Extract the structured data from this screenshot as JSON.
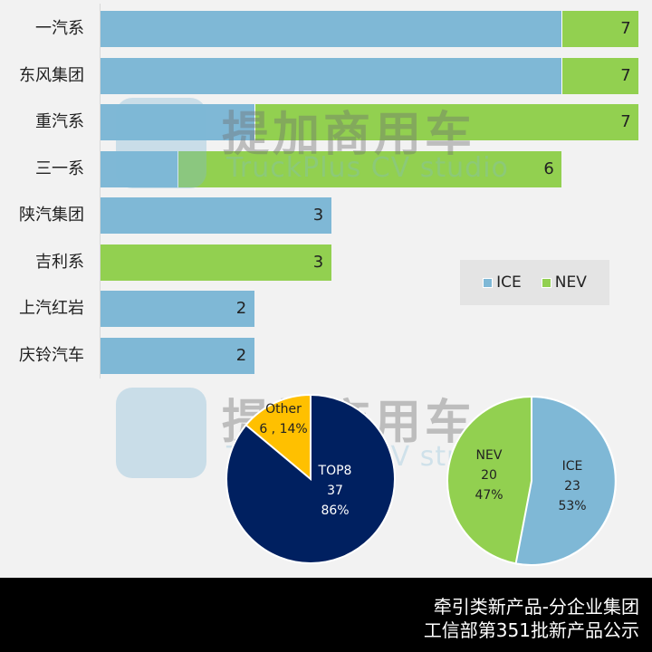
{
  "chart_data": [
    {
      "type": "bar",
      "orientation": "horizontal",
      "stacked": true,
      "categories": [
        "一汽系",
        "东风集团",
        "重汽系",
        "三一系",
        "陕汽集团",
        "吉利系",
        "上汽红岩",
        "庆铃汽车"
      ],
      "series": [
        {
          "name": "ICE",
          "color": "#7fb8d6",
          "values": [
            6,
            6,
            2,
            1,
            3,
            0,
            2,
            2
          ]
        },
        {
          "name": "NEV",
          "color": "#92d050",
          "values": [
            1,
            1,
            5,
            5,
            0,
            3,
            0,
            0
          ]
        }
      ],
      "totals": [
        7,
        7,
        7,
        6,
        3,
        3,
        2,
        2
      ],
      "legend": [
        "ICE",
        "NEV"
      ],
      "legend_position": "inside-right",
      "xlim": [
        0,
        7
      ],
      "grid": false
    },
    {
      "type": "pie",
      "labels": [
        "TOP8",
        "Other"
      ],
      "values": [
        37,
        6
      ],
      "percents": [
        "86%",
        "14%"
      ],
      "colors": [
        "#002060",
        "#ffc000"
      ]
    },
    {
      "type": "pie",
      "labels": [
        "ICE",
        "NEV"
      ],
      "values": [
        23,
        20
      ],
      "percents": [
        "53%",
        "47%"
      ],
      "colors": [
        "#7fb8d6",
        "#92d050"
      ]
    }
  ],
  "bars": [
    {
      "label": "一汽系",
      "ice": 6,
      "nev": 1,
      "total": "7"
    },
    {
      "label": "东风集团",
      "ice": 6,
      "nev": 1,
      "total": "7"
    },
    {
      "label": "重汽系",
      "ice": 2,
      "nev": 5,
      "total": "7"
    },
    {
      "label": "三一系",
      "ice": 1,
      "nev": 5,
      "total": "6"
    },
    {
      "label": "陕汽集团",
      "ice": 3,
      "nev": 0,
      "total": "3"
    },
    {
      "label": "吉利系",
      "ice": 0,
      "nev": 3,
      "total": "3"
    },
    {
      "label": "上汽红岩",
      "ice": 2,
      "nev": 0,
      "total": "2"
    },
    {
      "label": "庆铃汽车",
      "ice": 2,
      "nev": 0,
      "total": "2"
    }
  ],
  "legend": {
    "ice": "ICE",
    "nev": "NEV",
    "ice_color": "#7fb8d6",
    "nev_color": "#92d050"
  },
  "pie_top8": {
    "top8": {
      "name": "TOP8",
      "value": "37",
      "pct": "86%"
    },
    "other": {
      "name": "Other",
      "value_pct": "6 , 14%"
    }
  },
  "pie_fuel": {
    "ice": {
      "name": "ICE",
      "value": "23",
      "pct": "53%"
    },
    "nev": {
      "name": "NEV",
      "value": "20",
      "pct": "47%"
    }
  },
  "watermark": {
    "cn": "提加商用车",
    "en": "TruckPlus  CV studio"
  },
  "footer": {
    "line1": "牵引类新产品-分企业集团",
    "line2": "工信部第351批新产品公示"
  }
}
